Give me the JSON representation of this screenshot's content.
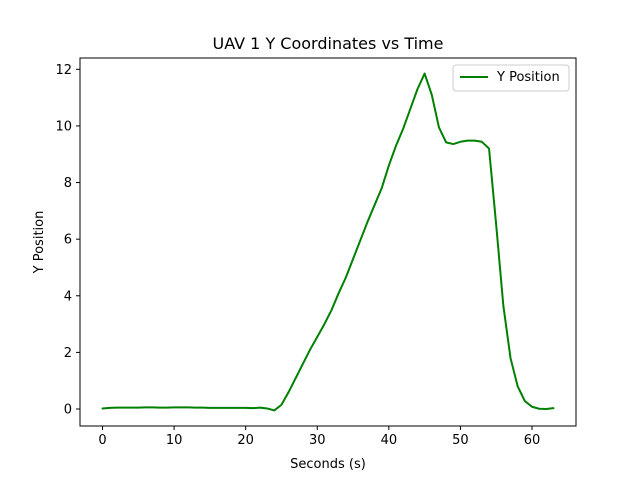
{
  "chart_data": {
    "type": "line",
    "title": "UAV 1 Y Coordinates vs Time",
    "xlabel": "Seconds (s)",
    "ylabel": "Y Position",
    "xlim": [
      -3.15,
      66.15
    ],
    "ylim": [
      -0.6,
      12.4
    ],
    "xticks": [
      0,
      10,
      20,
      30,
      40,
      50,
      60
    ],
    "yticks": [
      0,
      2,
      4,
      6,
      8,
      10,
      12
    ],
    "grid": false,
    "legend_position": "top-right",
    "series": [
      {
        "name": "Y Position",
        "color": "#008000",
        "x": [
          0,
          1,
          2,
          3,
          4,
          5,
          6,
          7,
          8,
          9,
          10,
          11,
          12,
          13,
          14,
          15,
          16,
          17,
          18,
          19,
          20,
          21,
          22,
          23,
          24,
          25,
          26,
          27,
          28,
          29,
          30,
          31,
          32,
          33,
          34,
          35,
          36,
          37,
          38,
          39,
          40,
          41,
          42,
          43,
          44,
          45,
          46,
          47,
          48,
          49,
          50,
          51,
          52,
          53,
          54,
          55,
          56,
          57,
          58,
          59,
          60,
          61,
          62,
          63
        ],
        "y": [
          0.02,
          0.04,
          0.05,
          0.05,
          0.05,
          0.05,
          0.06,
          0.06,
          0.05,
          0.05,
          0.06,
          0.06,
          0.06,
          0.05,
          0.05,
          0.04,
          0.04,
          0.04,
          0.04,
          0.04,
          0.04,
          0.03,
          0.05,
          0.02,
          -0.05,
          0.15,
          0.6,
          1.1,
          1.6,
          2.1,
          2.55,
          3.0,
          3.5,
          4.1,
          4.65,
          5.3,
          5.95,
          6.6,
          7.2,
          7.8,
          8.6,
          9.3,
          9.9,
          10.6,
          11.3,
          11.85,
          11.1,
          9.95,
          9.42,
          9.36,
          9.44,
          9.48,
          9.48,
          9.44,
          9.2,
          6.5,
          3.65,
          1.8,
          0.8,
          0.28,
          0.08,
          0.01,
          0.0,
          0.03
        ]
      }
    ]
  }
}
